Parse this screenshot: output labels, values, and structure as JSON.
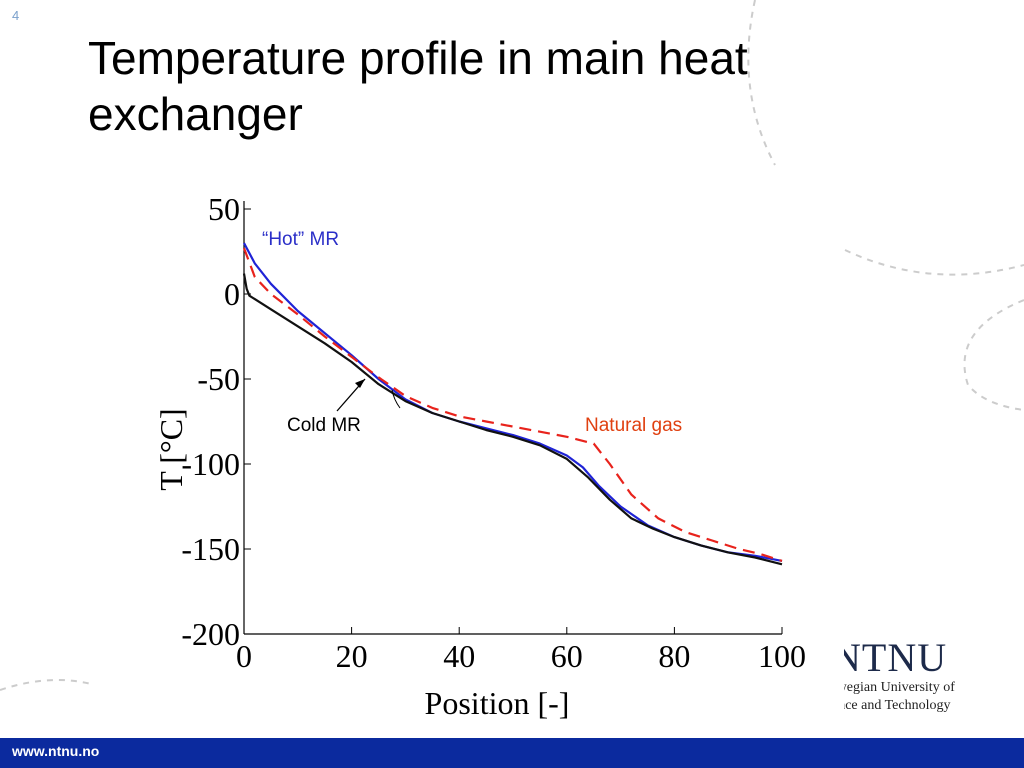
{
  "slide": {
    "number": "4",
    "title": "Temperature profile in main heat exchanger"
  },
  "branding": {
    "logo_text": "NTNU",
    "logo_line1": "rwegian University of",
    "logo_line2": "ence and Technology",
    "footer_url": "www.ntnu.no",
    "footer_color": "#0b2a9e"
  },
  "chart_data": {
    "type": "line",
    "xlabel": "Position  [-]",
    "ylabel": "T [°C]",
    "xlim": [
      0,
      100
    ],
    "ylim": [
      -200,
      50
    ],
    "xticks": [
      0,
      20,
      40,
      60,
      80,
      100
    ],
    "yticks": [
      50,
      0,
      -50,
      -100,
      -150,
      -200
    ],
    "grid": false,
    "annotations": {
      "hot_mr": "“Hot” MR",
      "cold_mr": "Cold MR",
      "natural_gas": "Natural gas"
    },
    "series": [
      {
        "name": "“Hot” MR",
        "color": "#1f23d6",
        "style": "solid",
        "x": [
          0,
          2,
          5,
          10,
          15,
          20,
          25,
          30,
          35,
          40,
          45,
          50,
          55,
          60,
          63,
          66,
          70,
          75,
          80,
          85,
          90,
          95,
          100
        ],
        "y": [
          30,
          18,
          6,
          -10,
          -23,
          -36,
          -50,
          -62,
          -70,
          -75,
          -79,
          -83,
          -88,
          -95,
          -102,
          -113,
          -125,
          -136,
          -143,
          -148,
          -152,
          -154,
          -157
        ]
      },
      {
        "name": "Natural gas",
        "color": "#e8231c",
        "style": "dashed",
        "x": [
          0,
          2,
          5,
          10,
          15,
          20,
          25,
          30,
          35,
          40,
          45,
          50,
          55,
          60,
          65,
          68,
          72,
          77,
          82,
          87,
          92,
          96,
          100
        ],
        "y": [
          27,
          10,
          0,
          -12,
          -25,
          -37,
          -49,
          -60,
          -67,
          -72,
          -75,
          -78,
          -81,
          -84,
          -88,
          -100,
          -118,
          -132,
          -140,
          -145,
          -150,
          -153,
          -157
        ]
      },
      {
        "name": "Cold MR",
        "color": "#111111",
        "style": "solid",
        "x": [
          0,
          0.5,
          1,
          5,
          10,
          15,
          20,
          25,
          30,
          35,
          40,
          45,
          50,
          55,
          60,
          64,
          68,
          72,
          76,
          80,
          85,
          90,
          95,
          100
        ],
        "y": [
          12,
          3,
          -1,
          -9,
          -19,
          -29,
          -40,
          -53,
          -63,
          -70,
          -75,
          -80,
          -84,
          -89,
          -97,
          -108,
          -121,
          -132,
          -138,
          -143,
          -148,
          -152,
          -155,
          -159
        ]
      }
    ]
  }
}
